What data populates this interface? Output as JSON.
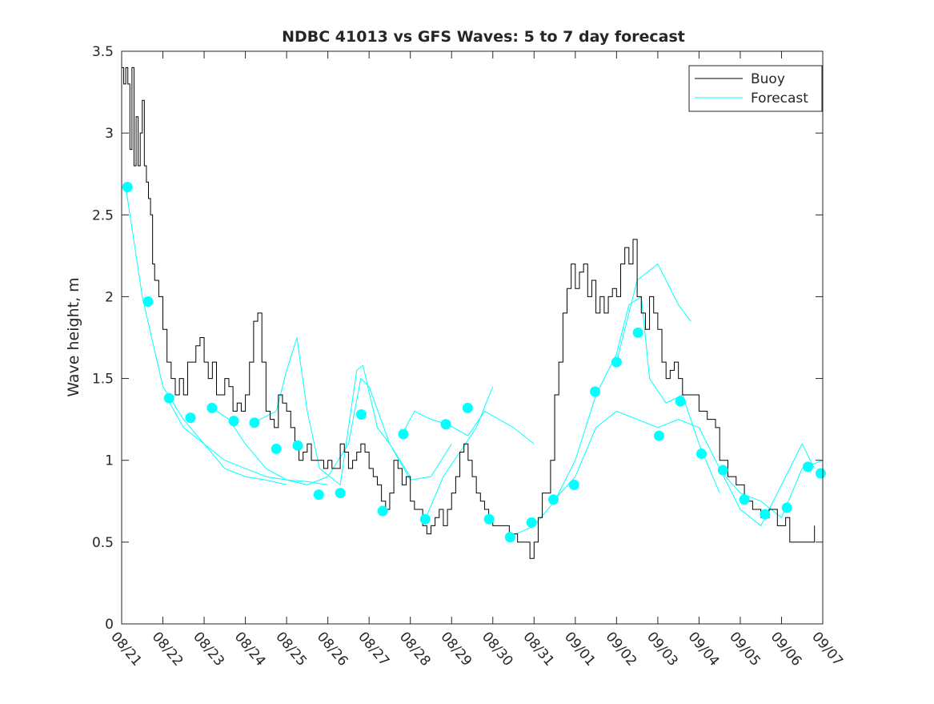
{
  "chart_data": {
    "type": "line",
    "title": "NDBC 41013 vs GFS Waves: 5 to 7 day forecast",
    "xlabel": "",
    "ylabel": "Wave height, m",
    "xlim": [
      0,
      17
    ],
    "ylim": [
      0,
      3.5
    ],
    "x_unit": "days since 08/21",
    "xtick_labels": [
      "08/21",
      "08/22",
      "08/23",
      "08/24",
      "08/25",
      "08/26",
      "08/27",
      "08/28",
      "08/29",
      "08/30",
      "08/31",
      "09/01",
      "09/02",
      "09/03",
      "09/04",
      "09/05",
      "09/06",
      "09/07"
    ],
    "ytick_labels": [
      "0",
      "0.5",
      "1",
      "1.5",
      "2",
      "2.5",
      "3",
      "3.5"
    ],
    "yticks": [
      0,
      0.5,
      1,
      1.5,
      2,
      2.5,
      3,
      3.5
    ],
    "legend": {
      "position": "top-right",
      "entries": [
        "Buoy",
        "Forecast"
      ]
    },
    "colors": {
      "buoy": "#000000",
      "forecast": "#00ffff"
    },
    "buoy": [
      [
        0,
        3.4
      ],
      [
        0.05,
        3.3
      ],
      [
        0.1,
        3.4
      ],
      [
        0.15,
        3.3
      ],
      [
        0.2,
        2.9
      ],
      [
        0.25,
        3.4
      ],
      [
        0.3,
        2.8
      ],
      [
        0.35,
        3.1
      ],
      [
        0.4,
        2.8
      ],
      [
        0.45,
        3.0
      ],
      [
        0.5,
        3.2
      ],
      [
        0.55,
        2.8
      ],
      [
        0.6,
        2.7
      ],
      [
        0.65,
        2.6
      ],
      [
        0.7,
        2.5
      ],
      [
        0.75,
        2.2
      ],
      [
        0.8,
        2.1
      ],
      [
        0.9,
        2.0
      ],
      [
        1.0,
        1.8
      ],
      [
        1.1,
        1.6
      ],
      [
        1.2,
        1.5
      ],
      [
        1.3,
        1.4
      ],
      [
        1.4,
        1.5
      ],
      [
        1.5,
        1.4
      ],
      [
        1.6,
        1.6
      ],
      [
        1.7,
        1.6
      ],
      [
        1.8,
        1.7
      ],
      [
        1.9,
        1.75
      ],
      [
        2.0,
        1.6
      ],
      [
        2.1,
        1.5
      ],
      [
        2.2,
        1.6
      ],
      [
        2.3,
        1.4
      ],
      [
        2.4,
        1.4
      ],
      [
        2.5,
        1.5
      ],
      [
        2.6,
        1.45
      ],
      [
        2.7,
        1.3
      ],
      [
        2.8,
        1.35
      ],
      [
        2.9,
        1.3
      ],
      [
        3.0,
        1.4
      ],
      [
        3.1,
        1.6
      ],
      [
        3.2,
        1.85
      ],
      [
        3.3,
        1.9
      ],
      [
        3.4,
        1.6
      ],
      [
        3.5,
        1.3
      ],
      [
        3.6,
        1.25
      ],
      [
        3.7,
        1.2
      ],
      [
        3.8,
        1.4
      ],
      [
        3.9,
        1.35
      ],
      [
        4.0,
        1.3
      ],
      [
        4.1,
        1.2
      ],
      [
        4.2,
        1.1
      ],
      [
        4.3,
        1.0
      ],
      [
        4.4,
        1.05
      ],
      [
        4.5,
        1.1
      ],
      [
        4.6,
        1.0
      ],
      [
        4.8,
        1.0
      ],
      [
        4.9,
        0.95
      ],
      [
        5.0,
        1.0
      ],
      [
        5.1,
        0.95
      ],
      [
        5.3,
        1.1
      ],
      [
        5.4,
        1.05
      ],
      [
        5.5,
        0.95
      ],
      [
        5.6,
        1.0
      ],
      [
        5.7,
        1.05
      ],
      [
        5.8,
        1.1
      ],
      [
        5.9,
        1.05
      ],
      [
        6.0,
        0.95
      ],
      [
        6.1,
        0.9
      ],
      [
        6.2,
        0.85
      ],
      [
        6.3,
        0.75
      ],
      [
        6.4,
        0.7
      ],
      [
        6.5,
        0.8
      ],
      [
        6.6,
        1.0
      ],
      [
        6.7,
        0.95
      ],
      [
        6.8,
        0.85
      ],
      [
        6.9,
        0.9
      ],
      [
        7.0,
        0.75
      ],
      [
        7.1,
        0.7
      ],
      [
        7.2,
        0.7
      ],
      [
        7.3,
        0.6
      ],
      [
        7.4,
        0.55
      ],
      [
        7.5,
        0.6
      ],
      [
        7.6,
        0.65
      ],
      [
        7.7,
        0.7
      ],
      [
        7.8,
        0.6
      ],
      [
        7.9,
        0.7
      ],
      [
        8.0,
        0.8
      ],
      [
        8.1,
        0.9
      ],
      [
        8.2,
        1.05
      ],
      [
        8.3,
        1.1
      ],
      [
        8.4,
        1.0
      ],
      [
        8.5,
        0.9
      ],
      [
        8.6,
        0.8
      ],
      [
        8.7,
        0.75
      ],
      [
        8.8,
        0.7
      ],
      [
        8.9,
        0.65
      ],
      [
        9.0,
        0.6
      ],
      [
        9.2,
        0.6
      ],
      [
        9.4,
        0.55
      ],
      [
        9.6,
        0.5
      ],
      [
        9.8,
        0.5
      ],
      [
        9.9,
        0.4
      ],
      [
        10.0,
        0.5
      ],
      [
        10.1,
        0.65
      ],
      [
        10.2,
        0.8
      ],
      [
        10.3,
        0.8
      ],
      [
        10.4,
        1.0
      ],
      [
        10.5,
        1.4
      ],
      [
        10.6,
        1.6
      ],
      [
        10.7,
        1.9
      ],
      [
        10.8,
        2.05
      ],
      [
        10.9,
        2.2
      ],
      [
        11.0,
        2.05
      ],
      [
        11.1,
        2.15
      ],
      [
        11.2,
        2.2
      ],
      [
        11.3,
        2.0
      ],
      [
        11.4,
        2.1
      ],
      [
        11.5,
        1.9
      ],
      [
        11.6,
        2.0
      ],
      [
        11.7,
        1.9
      ],
      [
        11.8,
        2.0
      ],
      [
        11.9,
        2.05
      ],
      [
        12.0,
        2.0
      ],
      [
        12.1,
        2.2
      ],
      [
        12.2,
        2.3
      ],
      [
        12.3,
        2.2
      ],
      [
        12.4,
        2.35
      ],
      [
        12.5,
        2.0
      ],
      [
        12.6,
        1.9
      ],
      [
        12.7,
        1.8
      ],
      [
        12.8,
        2.0
      ],
      [
        12.9,
        1.9
      ],
      [
        13.0,
        1.8
      ],
      [
        13.1,
        1.6
      ],
      [
        13.2,
        1.5
      ],
      [
        13.3,
        1.55
      ],
      [
        13.4,
        1.6
      ],
      [
        13.5,
        1.5
      ],
      [
        13.6,
        1.4
      ],
      [
        13.8,
        1.4
      ],
      [
        14.0,
        1.3
      ],
      [
        14.2,
        1.25
      ],
      [
        14.4,
        1.2
      ],
      [
        14.5,
        1.0
      ],
      [
        14.7,
        0.9
      ],
      [
        14.9,
        0.85
      ],
      [
        15.1,
        0.75
      ],
      [
        15.3,
        0.7
      ],
      [
        15.5,
        0.65
      ],
      [
        15.7,
        0.7
      ],
      [
        15.9,
        0.6
      ],
      [
        16.1,
        0.65
      ],
      [
        16.2,
        0.5
      ],
      [
        16.5,
        0.5
      ],
      [
        16.75,
        0.5
      ],
      [
        16.8,
        0.6
      ]
    ],
    "forecast_lines": [
      [
        [
          0.1,
          2.67
        ],
        [
          0.5,
          2.0
        ],
        [
          1.0,
          1.45
        ],
        [
          1.5,
          1.25
        ],
        [
          2.0,
          1.1
        ],
        [
          2.5,
          0.95
        ],
        [
          3.0,
          0.9
        ],
        [
          3.5,
          0.88
        ],
        [
          4.0,
          0.85
        ]
      ],
      [
        [
          1.1,
          1.38
        ],
        [
          1.5,
          1.2
        ],
        [
          2.0,
          1.1
        ],
        [
          2.5,
          1.0
        ],
        [
          3.0,
          0.95
        ],
        [
          3.5,
          0.9
        ],
        [
          4.0,
          0.88
        ],
        [
          4.5,
          0.87
        ],
        [
          5.0,
          0.85
        ]
      ],
      [
        [
          2.2,
          1.32
        ],
        [
          2.6,
          1.25
        ],
        [
          3.0,
          1.1
        ],
        [
          3.5,
          0.95
        ],
        [
          4.0,
          0.88
        ],
        [
          4.5,
          0.85
        ],
        [
          5.0,
          0.9
        ],
        [
          5.5,
          1.1
        ],
        [
          5.8,
          1.5
        ],
        [
          6.0,
          1.45
        ],
        [
          6.5,
          1.1
        ],
        [
          7.0,
          0.9
        ]
      ],
      [
        [
          3.2,
          1.23
        ],
        [
          3.75,
          1.3
        ],
        [
          4.0,
          1.55
        ],
        [
          4.25,
          1.75
        ],
        [
          4.5,
          1.3
        ],
        [
          4.8,
          0.95
        ],
        [
          5.3,
          0.85
        ],
        [
          5.7,
          1.55
        ],
        [
          5.85,
          1.58
        ],
        [
          6.2,
          1.2
        ],
        [
          6.5,
          1.1
        ],
        [
          7.0,
          0.88
        ],
        [
          7.5,
          0.9
        ],
        [
          8.0,
          1.1
        ]
      ],
      [
        [
          6.8,
          1.16
        ],
        [
          7.1,
          1.3
        ],
        [
          7.5,
          1.25
        ],
        [
          7.9,
          1.22
        ],
        [
          8.4,
          1.15
        ],
        [
          8.8,
          1.3
        ],
        [
          9.5,
          1.2
        ],
        [
          10.0,
          1.1
        ]
      ],
      [
        [
          7.36,
          0.64
        ],
        [
          7.8,
          0.9
        ],
        [
          8.2,
          1.05
        ],
        [
          8.6,
          1.2
        ],
        [
          9.0,
          1.45
        ]
      ],
      [
        [
          9.4,
          0.53
        ],
        [
          10.0,
          0.6
        ],
        [
          10.5,
          0.75
        ],
        [
          11.0,
          1.0
        ],
        [
          11.5,
          1.4
        ],
        [
          12.0,
          1.65
        ],
        [
          12.3,
          1.95
        ],
        [
          12.6,
          2.0
        ],
        [
          12.8,
          1.5
        ],
        [
          13.2,
          1.35
        ],
        [
          13.6,
          1.4
        ],
        [
          14.0,
          1.1
        ],
        [
          14.5,
          0.8
        ]
      ],
      [
        [
          10.5,
          0.76
        ],
        [
          11.0,
          0.9
        ],
        [
          11.5,
          1.2
        ],
        [
          12.0,
          1.3
        ],
        [
          12.5,
          1.25
        ],
        [
          13.0,
          1.2
        ],
        [
          13.5,
          1.25
        ],
        [
          14.0,
          1.2
        ],
        [
          14.5,
          0.95
        ],
        [
          15.0,
          0.7
        ],
        [
          15.5,
          0.6
        ],
        [
          16.0,
          0.85
        ],
        [
          16.5,
          1.1
        ],
        [
          16.8,
          0.95
        ]
      ],
      [
        [
          12.0,
          1.6
        ],
        [
          12.5,
          2.1
        ],
        [
          13.0,
          2.2
        ],
        [
          13.5,
          1.95
        ],
        [
          13.8,
          1.85
        ]
      ],
      [
        [
          14.5,
          0.94
        ],
        [
          15.0,
          0.8
        ],
        [
          15.5,
          0.75
        ],
        [
          16.0,
          0.65
        ],
        [
          16.5,
          0.95
        ],
        [
          17.0,
          1.0
        ]
      ]
    ],
    "forecast_points": [
      [
        0.14,
        2.67
      ],
      [
        0.64,
        1.97
      ],
      [
        1.15,
        1.38
      ],
      [
        1.67,
        1.26
      ],
      [
        2.19,
        1.32
      ],
      [
        2.72,
        1.24
      ],
      [
        3.22,
        1.23
      ],
      [
        3.75,
        1.07
      ],
      [
        4.27,
        1.09
      ],
      [
        4.78,
        0.79
      ],
      [
        5.3,
        0.8
      ],
      [
        5.81,
        1.28
      ],
      [
        6.33,
        0.69
      ],
      [
        6.83,
        1.16
      ],
      [
        7.36,
        0.64
      ],
      [
        7.86,
        1.22
      ],
      [
        8.39,
        1.32
      ],
      [
        8.91,
        0.64
      ],
      [
        9.42,
        0.53
      ],
      [
        9.94,
        0.62
      ],
      [
        10.47,
        0.76
      ],
      [
        10.97,
        0.85
      ],
      [
        11.48,
        1.42
      ],
      [
        12.0,
        1.6
      ],
      [
        12.52,
        1.78
      ],
      [
        13.03,
        1.15
      ],
      [
        13.55,
        1.36
      ],
      [
        14.06,
        1.04
      ],
      [
        14.58,
        0.94
      ],
      [
        15.1,
        0.76
      ],
      [
        15.6,
        0.67
      ],
      [
        16.13,
        0.71
      ],
      [
        16.64,
        0.96
      ],
      [
        16.95,
        0.92
      ]
    ]
  }
}
